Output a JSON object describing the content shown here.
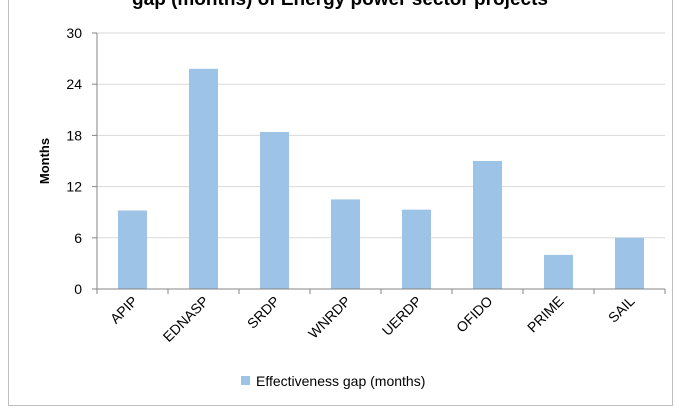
{
  "chart_data": {
    "type": "bar",
    "title": "gap (months) of Energy power sector projects",
    "xlabel": "",
    "ylabel": "Months",
    "categories": [
      "APIP",
      "EDNASP",
      "SRDP",
      "WNRDP",
      "UERDP",
      "OFIDO",
      "PRIME",
      "SAIL"
    ],
    "series": [
      {
        "name": "Effectiveness gap (months)",
        "values": [
          9.2,
          25.8,
          18.4,
          10.5,
          9.3,
          15.0,
          4.0,
          6.0
        ],
        "color": "#9dc3e6"
      }
    ],
    "ylim": [
      0,
      30
    ],
    "yticks": [
      0,
      6,
      12,
      18,
      24,
      30
    ],
    "grid": true,
    "legend_position": "bottom"
  }
}
